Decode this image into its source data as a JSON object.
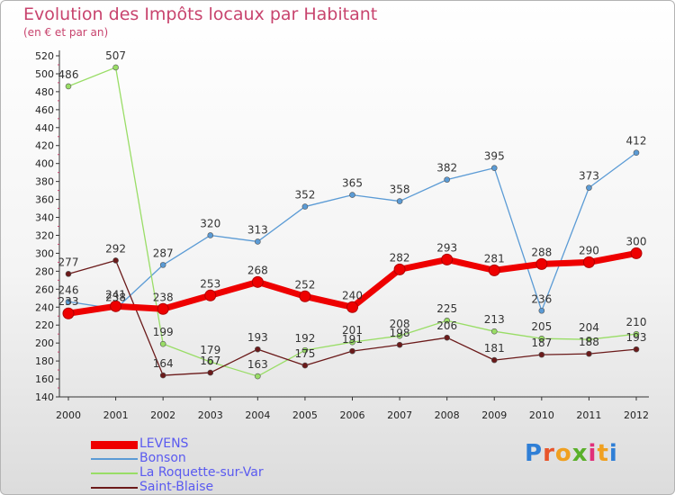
{
  "header": {
    "title": "Evolution des Impôts locaux par Habitant",
    "subtitle": "(en € et par an)"
  },
  "logo": {
    "letters": [
      "P",
      "r",
      "o",
      "x",
      "i",
      "t",
      "i"
    ],
    "colors": [
      "#2f7fd6",
      "#e8552b",
      "#f0a020",
      "#5ab02a",
      "#e0307a",
      "#f0a020",
      "#2f7fd6"
    ]
  },
  "chart_data": {
    "type": "line",
    "title": "Evolution des Impôts locaux par Habitant",
    "subtitle": "(en € et par an)",
    "xlabel": "",
    "ylabel": "",
    "x": [
      "2000",
      "2001",
      "2002",
      "2003",
      "2004",
      "2005",
      "2006",
      "2007",
      "2008",
      "2009",
      "2010",
      "2011",
      "2012"
    ],
    "yticks": [
      140,
      160,
      180,
      200,
      220,
      240,
      260,
      280,
      300,
      320,
      340,
      360,
      380,
      400,
      420,
      440,
      460,
      480,
      500,
      520
    ],
    "ylim": [
      140,
      520
    ],
    "grid": false,
    "legend_position": "bottom-left",
    "series": [
      {
        "name": "LEVENS",
        "values": [
          233,
          241,
          238,
          253,
          268,
          252,
          240,
          282,
          293,
          281,
          288,
          290,
          300
        ],
        "color": "#ee0000",
        "width": 7
      },
      {
        "name": "Bonson",
        "values": [
          246,
          238,
          287,
          320,
          313,
          352,
          365,
          358,
          382,
          395,
          236,
          373,
          412
        ],
        "color": "#5b9bd5",
        "width": 1.3
      },
      {
        "name": "La Roquette-sur-Var",
        "values": [
          486,
          507,
          199,
          179,
          163,
          192,
          201,
          208,
          225,
          213,
          205,
          204,
          210
        ],
        "color": "#99dd66",
        "width": 1.3
      },
      {
        "name": "Saint-Blaise",
        "values": [
          277,
          292,
          164,
          167,
          193,
          175,
          191,
          198,
          206,
          181,
          187,
          188,
          193
        ],
        "color": "#6b1a1a",
        "width": 1.3
      }
    ],
    "data_labels": [
      [
        "233",
        "241",
        "238",
        "253",
        "268",
        "252",
        "240",
        "282",
        "293",
        "281",
        "288",
        "290",
        "300"
      ],
      [
        "246",
        "238",
        "287",
        "320",
        "313",
        "352",
        "365",
        "358",
        "382",
        "395",
        "236",
        "373",
        "412"
      ],
      [
        "486",
        "507",
        "199",
        "179",
        "163",
        "192",
        "201",
        "208",
        "225",
        "213",
        "205",
        "204",
        "210"
      ],
      [
        "277",
        "292",
        "164",
        "167",
        "193",
        "175",
        "191",
        "198",
        "206",
        "181",
        "187",
        "188",
        "193"
      ]
    ]
  }
}
